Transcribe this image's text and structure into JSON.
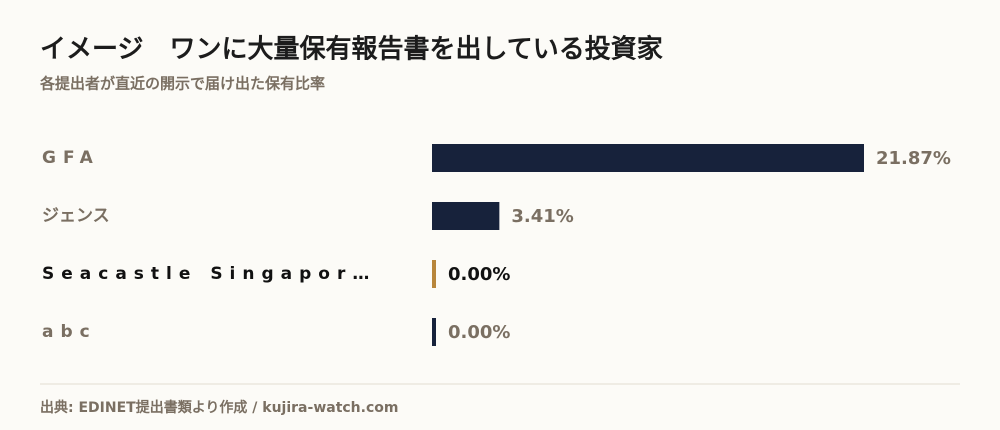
{
  "chart_data": {
    "type": "bar",
    "orientation": "horizontal",
    "title": "イメージ　ワンに大量保有報告書を出している投資家",
    "subtitle": "各提出者が直近の開示で届け出た保有比率",
    "categories": [
      "GFA",
      "ジェンス",
      "Seacastle Singapor…",
      "abc"
    ],
    "values": [
      21.87,
      3.41,
      0.0,
      0.0
    ],
    "value_labels": [
      "21.87%",
      "3.41%",
      "0.00%",
      "0.00%"
    ],
    "color": "#17223b",
    "highlight_color": "#b8863b",
    "highlighted": 2,
    "source": "出典: EDINET提出書類より作成 / kujira-watch.com"
  }
}
